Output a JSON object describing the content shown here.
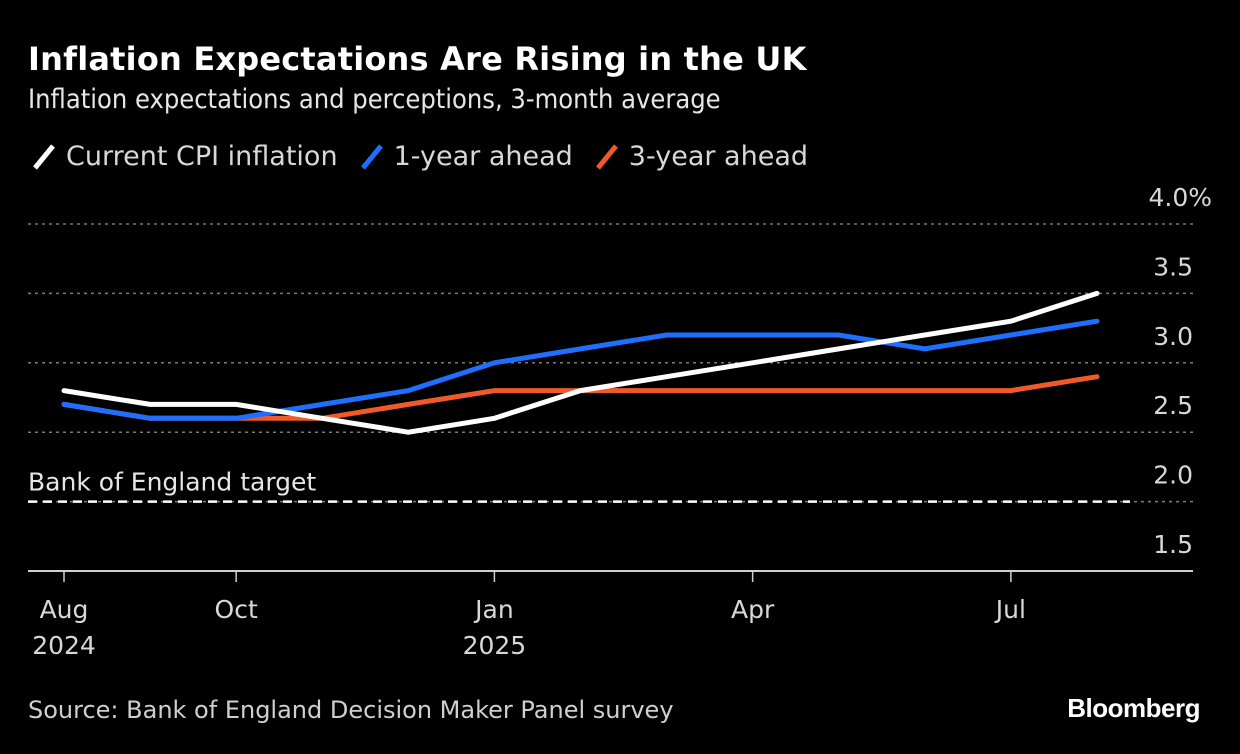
{
  "header": {
    "title": "Inflation Expectations Are Rising in the UK",
    "subtitle": "Inflation expectations and perceptions, 3-month average"
  },
  "legend": [
    {
      "label": "Current CPI inflation",
      "color": "#FFFFFF"
    },
    {
      "label": "1-year ahead",
      "color": "#1F6FFF"
    },
    {
      "label": "3-year ahead",
      "color": "#F05A28"
    }
  ],
  "footer": {
    "source": "Source: Bank of England Decision Maker Panel survey",
    "brand": "Bloomberg"
  },
  "chart_data": {
    "type": "line",
    "title": "Inflation Expectations Are Rising in the UK",
    "subtitle": "Inflation expectations and perceptions, 3-month average",
    "xlabel": "",
    "ylabel": "",
    "x": [
      "2024-08",
      "2024-09",
      "2024-10",
      "2024-11",
      "2024-12",
      "2025-01",
      "2025-02",
      "2025-03",
      "2025-04",
      "2025-05",
      "2025-06",
      "2025-07",
      "2025-08"
    ],
    "x_ticks": [
      {
        "x": "2024-08",
        "label": "Aug",
        "sublabel": "2024"
      },
      {
        "x": "2024-10",
        "label": "Oct",
        "sublabel": ""
      },
      {
        "x": "2025-01",
        "label": "Jan",
        "sublabel": "2025"
      },
      {
        "x": "2025-04",
        "label": "Apr",
        "sublabel": ""
      },
      {
        "x": "2025-07",
        "label": "Jul",
        "sublabel": ""
      }
    ],
    "ylim": [
      1.5,
      4.0
    ],
    "y_ticks": [
      {
        "value": 4.0,
        "label": "4.0%"
      },
      {
        "value": 3.5,
        "label": "3.5"
      },
      {
        "value": 3.0,
        "label": "3.0"
      },
      {
        "value": 2.5,
        "label": "2.5"
      },
      {
        "value": 2.0,
        "label": "2.0"
      },
      {
        "value": 1.5,
        "label": "1.5"
      }
    ],
    "y_axis_position": "right",
    "grid": true,
    "legend_position": "top-left",
    "series": [
      {
        "name": "3-year ahead",
        "color": "#F05A28",
        "values": [
          2.7,
          2.6,
          2.6,
          2.6,
          2.7,
          2.8,
          2.8,
          2.8,
          2.8,
          2.8,
          2.8,
          2.8,
          2.9
        ]
      },
      {
        "name": "1-year ahead",
        "color": "#1F6FFF",
        "values": [
          2.7,
          2.6,
          2.6,
          2.7,
          2.8,
          3.0,
          3.1,
          3.2,
          3.2,
          3.2,
          3.1,
          3.2,
          3.3
        ]
      },
      {
        "name": "Current CPI inflation",
        "color": "#FFFFFF",
        "values": [
          2.8,
          2.7,
          2.7,
          2.6,
          2.5,
          2.6,
          2.8,
          2.9,
          3.0,
          3.1,
          3.2,
          3.3,
          3.5
        ]
      }
    ],
    "annotations": [
      {
        "type": "hline",
        "value": 2.0,
        "label": "Bank of England target",
        "style": "dashed"
      }
    ]
  }
}
